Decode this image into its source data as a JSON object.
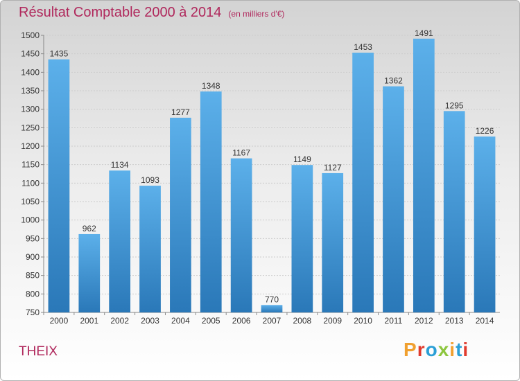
{
  "header": {
    "title": "Résultat Comptable 2000 à 2014",
    "subtitle": "(en milliers d'€)"
  },
  "footer": {
    "place": "THEIX",
    "logo": {
      "text": "Proxiti",
      "colors": [
        "#f0a030",
        "#e03b2e",
        "#2a9fd6",
        "#8dc63f",
        "#f0a030",
        "#2a9fd6",
        "#e03b2e"
      ]
    }
  },
  "colors": {
    "bar_top": "#5cb0ea",
    "bar_bottom": "#2a78b8",
    "title": "#b0285c"
  },
  "chart_data": {
    "type": "bar",
    "title": "Résultat Comptable 2000 à 2014 (en milliers d'€)",
    "xlabel": "",
    "ylabel": "",
    "categories": [
      "2000",
      "2001",
      "2002",
      "2003",
      "2004",
      "2005",
      "2006",
      "2007",
      "2008",
      "2009",
      "2010",
      "2011",
      "2012",
      "2013",
      "2014"
    ],
    "values": [
      1435,
      962,
      1134,
      1093,
      1277,
      1348,
      1167,
      770,
      1149,
      1127,
      1453,
      1362,
      1491,
      1295,
      1226
    ],
    "ylim": [
      750,
      1500
    ],
    "yticks": [
      750,
      800,
      850,
      900,
      950,
      1000,
      1050,
      1100,
      1150,
      1200,
      1250,
      1300,
      1350,
      1400,
      1450,
      1500
    ],
    "grid": true
  }
}
